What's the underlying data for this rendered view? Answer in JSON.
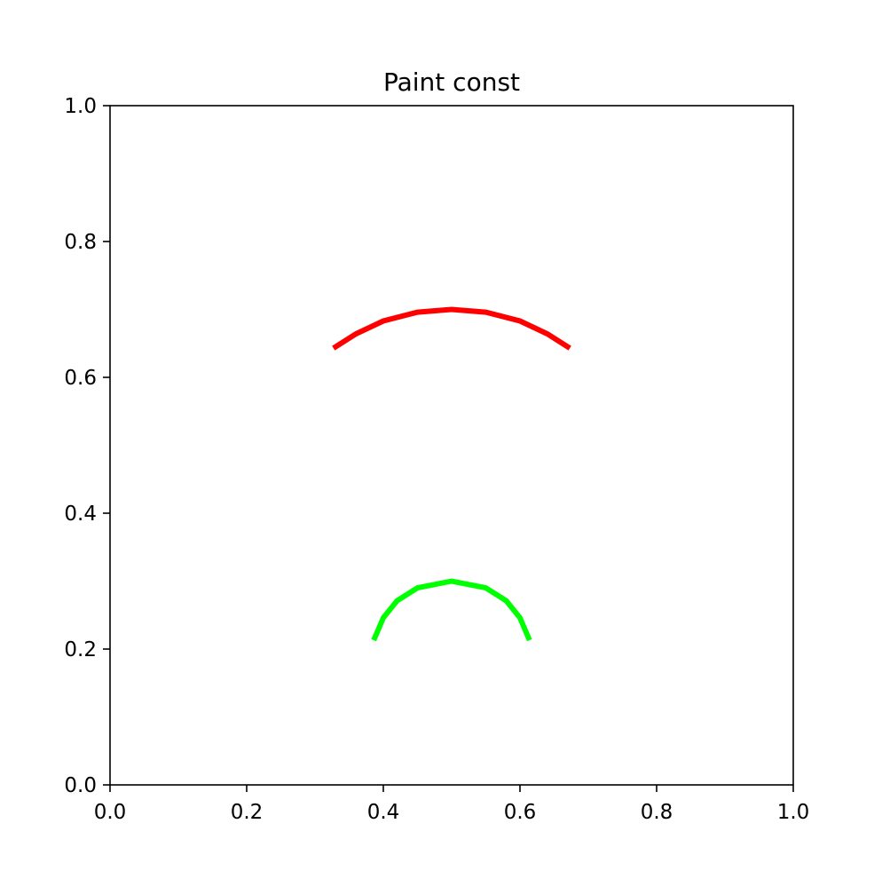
{
  "chart_data": {
    "type": "line",
    "title": "Paint const",
    "xlabel": "",
    "ylabel": "",
    "xlim": [
      0.0,
      1.0
    ],
    "ylim": [
      0.0,
      1.0
    ],
    "xticks": [
      "0.0",
      "0.2",
      "0.4",
      "0.6",
      "0.8",
      "1.0"
    ],
    "yticks": [
      "0.0",
      "0.2",
      "0.4",
      "0.6",
      "0.8",
      "1.0"
    ],
    "grid": false,
    "series": [
      {
        "color": "#ff0000",
        "points": [
          [
            0.327,
            0.643
          ],
          [
            0.36,
            0.664
          ],
          [
            0.4,
            0.683
          ],
          [
            0.45,
            0.696
          ],
          [
            0.5,
            0.7
          ],
          [
            0.55,
            0.696
          ],
          [
            0.6,
            0.683
          ],
          [
            0.64,
            0.664
          ],
          [
            0.673,
            0.643
          ]
        ]
      },
      {
        "color": "#00ff00",
        "points": [
          [
            0.386,
            0.213
          ],
          [
            0.4,
            0.246
          ],
          [
            0.42,
            0.271
          ],
          [
            0.45,
            0.29
          ],
          [
            0.5,
            0.3
          ],
          [
            0.55,
            0.29
          ],
          [
            0.58,
            0.271
          ],
          [
            0.6,
            0.246
          ],
          [
            0.614,
            0.213
          ]
        ]
      }
    ]
  }
}
